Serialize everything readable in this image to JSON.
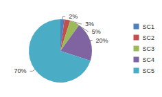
{
  "chart_data": {
    "type": "pie",
    "categories": [
      "SC1",
      "SC2",
      "SC3",
      "SC4",
      "SC5"
    ],
    "values": [
      2,
      3,
      5,
      20,
      70
    ],
    "value_labels": [
      "2%",
      "3%",
      "5%",
      "20%",
      "70%"
    ],
    "colors": [
      "#4f81bd",
      "#c0504d",
      "#9bbb59",
      "#8064a2",
      "#4bacc6"
    ],
    "data_labels": true,
    "legend": "right"
  }
}
